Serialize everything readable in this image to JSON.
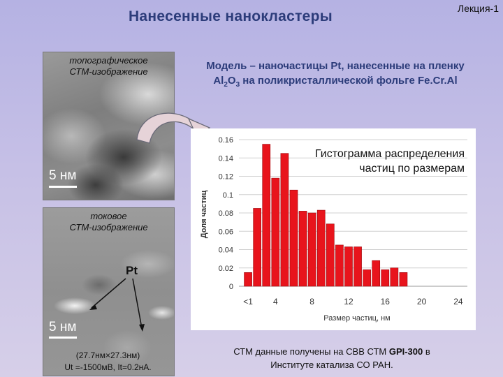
{
  "slide": {
    "title": "Нанесенные нанокластеры",
    "lecture_label": "Лекция-1",
    "model_text": {
      "part1": "Модель – наночастицы Pt, нанесенные на пленку Al",
      "sub1": "2",
      "mid": "O",
      "sub2": "3",
      "part2": " на поликристаллической фольге Fe.Cr.Al"
    },
    "topo_image": {
      "caption_line1": "топографическое",
      "caption_line2": "СТМ-изображение",
      "scale_label": "5 нм"
    },
    "current_image": {
      "caption_line1": "токовое",
      "caption_line2": "СТМ-изображение",
      "pt_label": "Pt",
      "scale_label": "5 нм"
    },
    "current_params": {
      "line1": "(27.7нм×27.3нм)",
      "line2": "Ut =-1500мВ, It=0.2нА."
    },
    "footer": {
      "part1": "СТМ данные получены на СВВ СТМ ",
      "bold": "GPI-300",
      "part2": " в",
      "line2": "Институте катализа СО РАН."
    },
    "colors": {
      "title": "#2c3c7a",
      "bar_fill": "#e8141c",
      "bar_stroke": "#9a0b10"
    }
  },
  "chart_data": {
    "type": "bar",
    "title_line1": "Гистограмма распределения",
    "title_line2": "частиц по размерам",
    "xlabel": "Размер частиц, нм",
    "ylabel": "Доля частиц",
    "x_tick_labels": [
      "<1",
      "4",
      "8",
      "12",
      "16",
      "20",
      "24"
    ],
    "y_tick_labels": [
      "0",
      "0.02",
      "0.04",
      "0.06",
      "0.08",
      "0.1",
      "0.12",
      "0.14",
      "0.16"
    ],
    "ylim": [
      0,
      0.16
    ],
    "xlim": [
      0,
      25
    ],
    "bar_width": 1,
    "x": [
      1,
      2,
      3,
      4,
      5,
      6,
      7,
      8,
      9,
      10,
      11,
      12,
      13,
      14,
      15,
      16,
      17,
      18,
      19,
      20,
      21,
      22,
      23,
      24
    ],
    "values": [
      0.015,
      0.085,
      0.155,
      0.118,
      0.145,
      0.105,
      0.082,
      0.08,
      0.083,
      0.068,
      0.045,
      0.043,
      0.043,
      0.018,
      0.028,
      0.018,
      0.02,
      0.015,
      0.0,
      0.0,
      0.0,
      0.0,
      0.0,
      0.0
    ]
  }
}
